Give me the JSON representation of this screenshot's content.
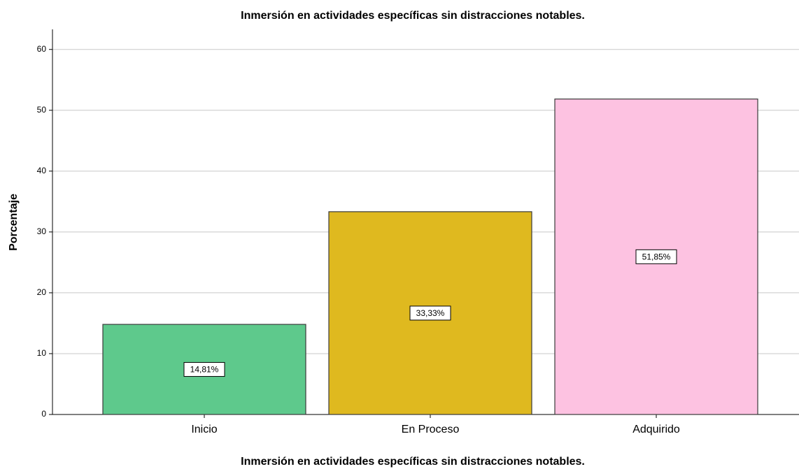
{
  "chart_data": {
    "type": "bar",
    "title": "Inmersión en actividades específicas sin distracciones notables.",
    "xlabel": "Inmersión en actividades específicas sin distracciones notables.",
    "ylabel": "Porcentaje",
    "categories": [
      "Inicio",
      "En Proceso",
      "Adquirido"
    ],
    "values": [
      14.81,
      33.33,
      51.85
    ],
    "value_labels": [
      "14,81%",
      "33,33%",
      "51,85%"
    ],
    "colors": [
      "#5ec98c",
      "#dfb91f",
      "#fdc2e1"
    ],
    "ylim": [
      0,
      63.3
    ],
    "yticks": [
      0,
      10,
      20,
      30,
      40,
      50,
      60
    ],
    "grid": true
  }
}
